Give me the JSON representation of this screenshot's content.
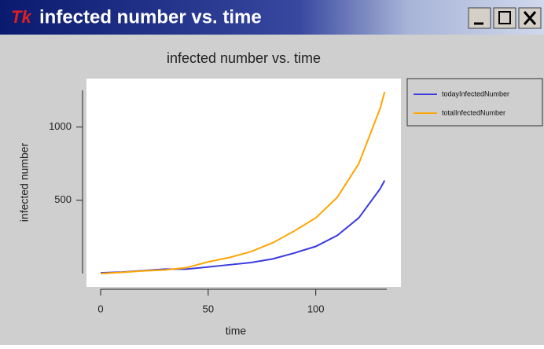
{
  "window": {
    "title": "infected number vs. time"
  },
  "chart_data": {
    "type": "line",
    "title": "infected number vs. time",
    "x_label": "time",
    "y_label": "infected number",
    "x": [
      0,
      10,
      20,
      30,
      40,
      50,
      60,
      70,
      80,
      90,
      100,
      110,
      120,
      130,
      132
    ],
    "series": [
      {
        "name": "todayInfectedNumber",
        "color": "#3a3ae0",
        "values": [
          5,
          10,
          20,
          30,
          30,
          45,
          60,
          75,
          100,
          140,
          185,
          260,
          380,
          580,
          635
        ]
      },
      {
        "name": "totalInfectedNumber",
        "color": "#ffa500",
        "values": [
          0,
          8,
          18,
          25,
          40,
          80,
          110,
          150,
          210,
          290,
          380,
          520,
          750,
          1130,
          1240
        ]
      }
    ],
    "xlim": [
      0,
      133
    ],
    "xticks": [
      0,
      50,
      100
    ],
    "ylim": [
      0,
      1250
    ],
    "yticks": [
      500,
      1000
    ],
    "legend": "outside-right"
  }
}
